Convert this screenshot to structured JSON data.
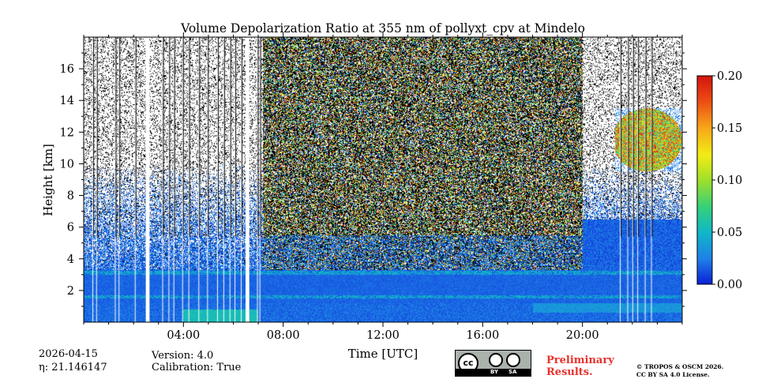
{
  "chart_data": {
    "type": "heatmap",
    "title": "Volume Depolarization Ratio at 355 nm of pollyxt_cpv at Mindelo",
    "xlabel": "Time [UTC]",
    "ylabel": "Height [km]",
    "xlim_hours": [
      0,
      24
    ],
    "ylim_km": [
      0,
      18
    ],
    "x_ticks": [
      {
        "value": 4,
        "label": "04:00"
      },
      {
        "value": 8,
        "label": "08:00"
      },
      {
        "value": 12,
        "label": "12:00"
      },
      {
        "value": 16,
        "label": "16:00"
      },
      {
        "value": 20,
        "label": "20:00"
      }
    ],
    "y_ticks": [
      {
        "value": 2,
        "label": "2"
      },
      {
        "value": 4,
        "label": "4"
      },
      {
        "value": 6,
        "label": "6"
      },
      {
        "value": 8,
        "label": "8"
      },
      {
        "value": 10,
        "label": "10"
      },
      {
        "value": 12,
        "label": "12"
      },
      {
        "value": 14,
        "label": "14"
      },
      {
        "value": 16,
        "label": "16"
      }
    ],
    "colorbar": {
      "range": [
        0.0,
        0.2
      ],
      "ticks": [
        {
          "value": 0.0,
          "label": "0.00"
        },
        {
          "value": 0.05,
          "label": "0.05"
        },
        {
          "value": 0.1,
          "label": "0.10"
        },
        {
          "value": 0.15,
          "label": "0.15"
        },
        {
          "value": 0.2,
          "label": "0.20"
        }
      ],
      "colors": [
        "#0a1fd6",
        "#1f7fe8",
        "#10b8c8",
        "#35d07a",
        "#9fe02a",
        "#f3ec16",
        "#f7a61a",
        "#ec4b14",
        "#d4140e"
      ]
    },
    "data_gaps_hours": [
      [
        2.49,
        2.64
      ],
      [
        6.49,
        6.64
      ]
    ],
    "thin_gaps_hours": [
      0.35,
      0.5,
      1.25,
      1.4,
      2.05,
      3.15,
      3.4,
      3.6,
      3.95,
      4.2,
      4.6,
      4.95,
      5.35,
      5.6,
      5.85,
      6.05,
      6.3,
      6.95,
      7.05,
      21.5,
      21.8,
      22.0,
      22.2,
      22.5,
      22.75
    ],
    "features": [
      {
        "name": "boundary layer",
        "height_km": [
          0,
          1.2
        ],
        "value_range": [
          0.0,
          0.04
        ]
      },
      {
        "name": "aerosol layer",
        "height_km": [
          1.2,
          3.3
        ],
        "value_range": [
          0.0,
          0.03
        ]
      },
      {
        "name": "noisy upper region",
        "time_hours": [
          7.2,
          20.0
        ],
        "height_km": [
          3.0,
          18.0
        ],
        "value_range": [
          0.0,
          0.2
        ]
      },
      {
        "name": "cirrus cloud",
        "time_hours": [
          21.3,
          24.0
        ],
        "height_km": [
          9.5,
          13.5
        ],
        "value_range": [
          0.05,
          0.2
        ]
      }
    ]
  },
  "footer": {
    "date": "2026-04-15",
    "eta": "η: 21.146147",
    "version": "Version: 4.0",
    "calibration": "Calibration: True",
    "preliminary_line1": "Preliminary",
    "preliminary_line2": "Results.",
    "copyright_line1": "© TROPOS & OSCM 2026.",
    "copyright_line2": "CC BY SA 4.0 License.",
    "license_logo": {
      "cc": "cc",
      "by": "BY",
      "sa": "SA"
    }
  }
}
